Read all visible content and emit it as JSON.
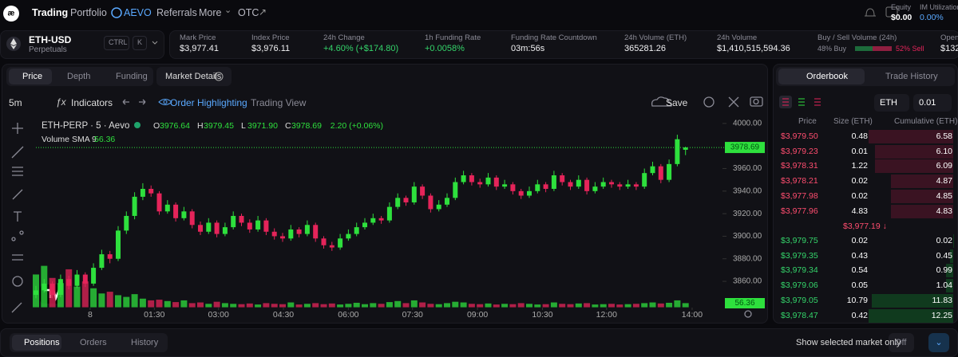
{
  "nav": {
    "items": [
      "Trading",
      "Portfolio",
      "AEVO",
      "Referrals",
      "More",
      "OTC"
    ],
    "equity_label": "Equity",
    "equity": "$0.00",
    "im_label": "IM Utilization",
    "im": "0.00%"
  },
  "market": {
    "symbol": "ETH-USD",
    "kind": "Perpetuals",
    "shortcut": [
      "CTRL",
      "K"
    ],
    "stats": [
      {
        "label": "Mark Price",
        "value": "$3,977.41"
      },
      {
        "label": "Index Price",
        "value": "$3,976.11"
      },
      {
        "label": "24h Change",
        "value": "+4.60% (+$174.80)",
        "color": "#34d46a"
      },
      {
        "label": "1h Funding Rate",
        "value": "+0.0058%",
        "color": "#34d46a"
      },
      {
        "label": "Funding Rate Countdown",
        "value": "03m:56s"
      },
      {
        "label": "24h Volume (ETH)",
        "value": "365281.26"
      },
      {
        "label": "24h Volume",
        "value": "$1,410,515,594.36"
      }
    ],
    "buy_sell_label": "Buy / Sell Volume (24h)",
    "buy": "48% Buy",
    "buy_pct": 48,
    "sell": "52% Sell",
    "open_label": "Open",
    "open_value": "$132"
  },
  "chart_tabs": [
    "Price",
    "Depth",
    "Funding"
  ],
  "market_details": "Market Details",
  "toolbar": {
    "interval": "5m",
    "indicators": "Indicators",
    "highlight": "Order Highlighting",
    "tradingview": "Trading View",
    "save": "Save"
  },
  "chart_data": {
    "type": "candlestick",
    "title": "ETH-PERP · 5 · Aevo",
    "legend_letters": [
      "O",
      "H",
      "L",
      "C"
    ],
    "legend_values": [
      "3976.64",
      "3979.45",
      "3971.90",
      "3978.69"
    ],
    "change": "2.20 (+0.06%)",
    "volume_label": "Volume SMA 9",
    "volume_sma": 56.36,
    "up_color": "#2ee03d",
    "down_color": "#e5245a",
    "ylim": [
      3837,
      4007
    ],
    "yticks": [
      {
        "value": 3860,
        "label": "3860.00"
      },
      {
        "value": 3880,
        "label": "3880.00"
      },
      {
        "value": 3900,
        "label": "3900.00"
      },
      {
        "value": 3920,
        "label": "3920.00"
      },
      {
        "value": 3940,
        "label": "3940.00"
      },
      {
        "value": 3960,
        "label": "3960.00"
      },
      {
        "value": 4000,
        "label": "4000.00"
      }
    ],
    "xticks": [
      {
        "value": 6.6,
        "label": "8"
      },
      {
        "value": 14.4,
        "label": "01:30"
      },
      {
        "value": 22.2,
        "label": "03:00"
      },
      {
        "value": 30.1,
        "label": "04:30"
      },
      {
        "value": 38.0,
        "label": "06:00"
      },
      {
        "value": 45.8,
        "label": "07:30"
      },
      {
        "value": 53.7,
        "label": "09:00"
      },
      {
        "value": 61.6,
        "label": "10:30"
      },
      {
        "value": 69.4,
        "label": "12:00"
      },
      {
        "value": 79.8,
        "label": "14:00"
      }
    ],
    "candles": [
      [
        3848,
        3856,
        3845,
        3852
      ],
      [
        3852,
        3862,
        3850,
        3858
      ],
      [
        3858,
        3860,
        3845,
        3848
      ],
      [
        3848,
        3866,
        3846,
        3862
      ],
      [
        3862,
        3865,
        3853,
        3856
      ],
      [
        3856,
        3870,
        3854,
        3866
      ],
      [
        3866,
        3868,
        3855,
        3858
      ],
      [
        3858,
        3876,
        3856,
        3872
      ],
      [
        3872,
        3888,
        3870,
        3884
      ],
      [
        3884,
        3887,
        3876,
        3880
      ],
      [
        3880,
        3909,
        3878,
        3905
      ],
      [
        3905,
        3922,
        3902,
        3918
      ],
      [
        3918,
        3939,
        3915,
        3935
      ],
      [
        3935,
        3947,
        3932,
        3942
      ],
      [
        3942,
        3945,
        3935,
        3938
      ],
      [
        3938,
        3940,
        3919,
        3922
      ],
      [
        3922,
        3932,
        3920,
        3928
      ],
      [
        3928,
        3930,
        3913,
        3916
      ],
      [
        3916,
        3926,
        3914,
        3922
      ],
      [
        3922,
        3924,
        3907,
        3910
      ],
      [
        3910,
        3913,
        3901,
        3904
      ],
      [
        3904,
        3916,
        3902,
        3912
      ],
      [
        3912,
        3914,
        3899,
        3902
      ],
      [
        3902,
        3912,
        3900,
        3908
      ],
      [
        3908,
        3922,
        3906,
        3918
      ],
      [
        3918,
        3920,
        3909,
        3912
      ],
      [
        3912,
        3915,
        3903,
        3906
      ],
      [
        3906,
        3918,
        3904,
        3914
      ],
      [
        3914,
        3916,
        3901,
        3904
      ],
      [
        3904,
        3907,
        3897,
        3900
      ],
      [
        3900,
        3903,
        3895,
        3898
      ],
      [
        3898,
        3910,
        3896,
        3906
      ],
      [
        3906,
        3908,
        3899,
        3902
      ],
      [
        3902,
        3914,
        3900,
        3910
      ],
      [
        3910,
        3912,
        3895,
        3898
      ],
      [
        3898,
        3900,
        3889,
        3892
      ],
      [
        3892,
        3895,
        3887,
        3890
      ],
      [
        3890,
        3902,
        3888,
        3898
      ],
      [
        3898,
        3906,
        3896,
        3902
      ],
      [
        3902,
        3912,
        3900,
        3908
      ],
      [
        3908,
        3916,
        3906,
        3912
      ],
      [
        3912,
        3920,
        3910,
        3916
      ],
      [
        3916,
        3918,
        3911,
        3914
      ],
      [
        3914,
        3930,
        3912,
        3926
      ],
      [
        3926,
        3938,
        3924,
        3934
      ],
      [
        3934,
        3936,
        3927,
        3930
      ],
      [
        3930,
        3948,
        3928,
        3944
      ],
      [
        3944,
        3946,
        3933,
        3936
      ],
      [
        3936,
        3938,
        3921,
        3924
      ],
      [
        3924,
        3932,
        3922,
        3928
      ],
      [
        3928,
        3938,
        3926,
        3934
      ],
      [
        3934,
        3952,
        3932,
        3948
      ],
      [
        3948,
        3958,
        3946,
        3954
      ],
      [
        3954,
        3956,
        3945,
        3948
      ],
      [
        3948,
        3951,
        3943,
        3946
      ],
      [
        3946,
        3956,
        3944,
        3952
      ],
      [
        3952,
        3954,
        3941,
        3944
      ],
      [
        3944,
        3950,
        3942,
        3946
      ],
      [
        3946,
        3948,
        3937,
        3940
      ],
      [
        3940,
        3942,
        3933,
        3936
      ],
      [
        3936,
        3944,
        3934,
        3940
      ],
      [
        3940,
        3950,
        3938,
        3946
      ],
      [
        3946,
        3948,
        3939,
        3942
      ],
      [
        3942,
        3958,
        3940,
        3954
      ],
      [
        3954,
        3956,
        3945,
        3948
      ],
      [
        3948,
        3950,
        3941,
        3944
      ],
      [
        3944,
        3954,
        3942,
        3950
      ],
      [
        3950,
        3952,
        3937,
        3940
      ],
      [
        3940,
        3948,
        3938,
        3944
      ],
      [
        3944,
        3952,
        3942,
        3948
      ],
      [
        3948,
        3950,
        3943,
        3946
      ],
      [
        3946,
        3948,
        3941,
        3944
      ],
      [
        3944,
        3950,
        3942,
        3946
      ],
      [
        3946,
        3948,
        3941,
        3944
      ],
      [
        3944,
        3960,
        3942,
        3956
      ],
      [
        3956,
        3966,
        3954,
        3962
      ],
      [
        3962,
        3964,
        3947,
        3950
      ],
      [
        3950,
        3968,
        3948,
        3964
      ],
      [
        3964,
        3990,
        3962,
        3986
      ],
      [
        3976.64,
        3979.45,
        3971.9,
        3978.69
      ]
    ],
    "volume": [
      95,
      120,
      85,
      70,
      110,
      60,
      75,
      55,
      40,
      45,
      35,
      30,
      38,
      25,
      20,
      22,
      18,
      15,
      20,
      12,
      14,
      10,
      16,
      12,
      10,
      9,
      11,
      8,
      12,
      10,
      9,
      14,
      8,
      10,
      12,
      9,
      11,
      8,
      10,
      13,
      9,
      12,
      10,
      15,
      18,
      12,
      20,
      14,
      10,
      9,
      12,
      16,
      14,
      10,
      9,
      11,
      8,
      10,
      9,
      12,
      10,
      8,
      9,
      14,
      10,
      9,
      11,
      12,
      8,
      9,
      10,
      8,
      9,
      10,
      12,
      14,
      11,
      13,
      20,
      12
    ]
  },
  "orderbook": {
    "tabs": [
      "Orderbook",
      "Trade History"
    ],
    "asset": "ETH",
    "tick": "0.01",
    "headers": [
      "Price",
      "Size (ETH)",
      "Cumulative (ETH)"
    ],
    "asks": [
      {
        "price": "$3,979.50",
        "size": "0.48",
        "cumulative": 6.58
      },
      {
        "price": "$3,979.23",
        "size": "0.01",
        "cumulative": 6.1,
        "cumulative_label": "6.10"
      },
      {
        "price": "$3,978.31",
        "size": "1.22",
        "cumulative": 6.09
      },
      {
        "price": "$3,978.21",
        "size": "0.02",
        "cumulative": 4.87
      },
      {
        "price": "$3,977.98",
        "size": "0.02",
        "cumulative": 4.85
      },
      {
        "price": "$3,977.96",
        "size": "4.83",
        "cumulative": 4.83
      }
    ],
    "mid": "$3,977.19 ↓",
    "bids": [
      {
        "price": "$3,979.75",
        "size": "0.02",
        "cumulative": 0.02
      },
      {
        "price": "$3,979.35",
        "size": "0.43",
        "cumulative": 0.45
      },
      {
        "price": "$3,979.34",
        "size": "0.54",
        "cumulative": 0.99
      },
      {
        "price": "$3,979.06",
        "size": "0.05",
        "cumulative": 1.04
      },
      {
        "price": "$3,979.05",
        "size": "10.79",
        "cumulative": 11.83
      },
      {
        "price": "$3,978.47",
        "size": "0.42",
        "cumulative": 12.25
      }
    ]
  },
  "bottom": {
    "tabs": [
      "Positions",
      "Orders",
      "History"
    ],
    "toggle_label": "Show selected market only",
    "toggle": "Off"
  }
}
